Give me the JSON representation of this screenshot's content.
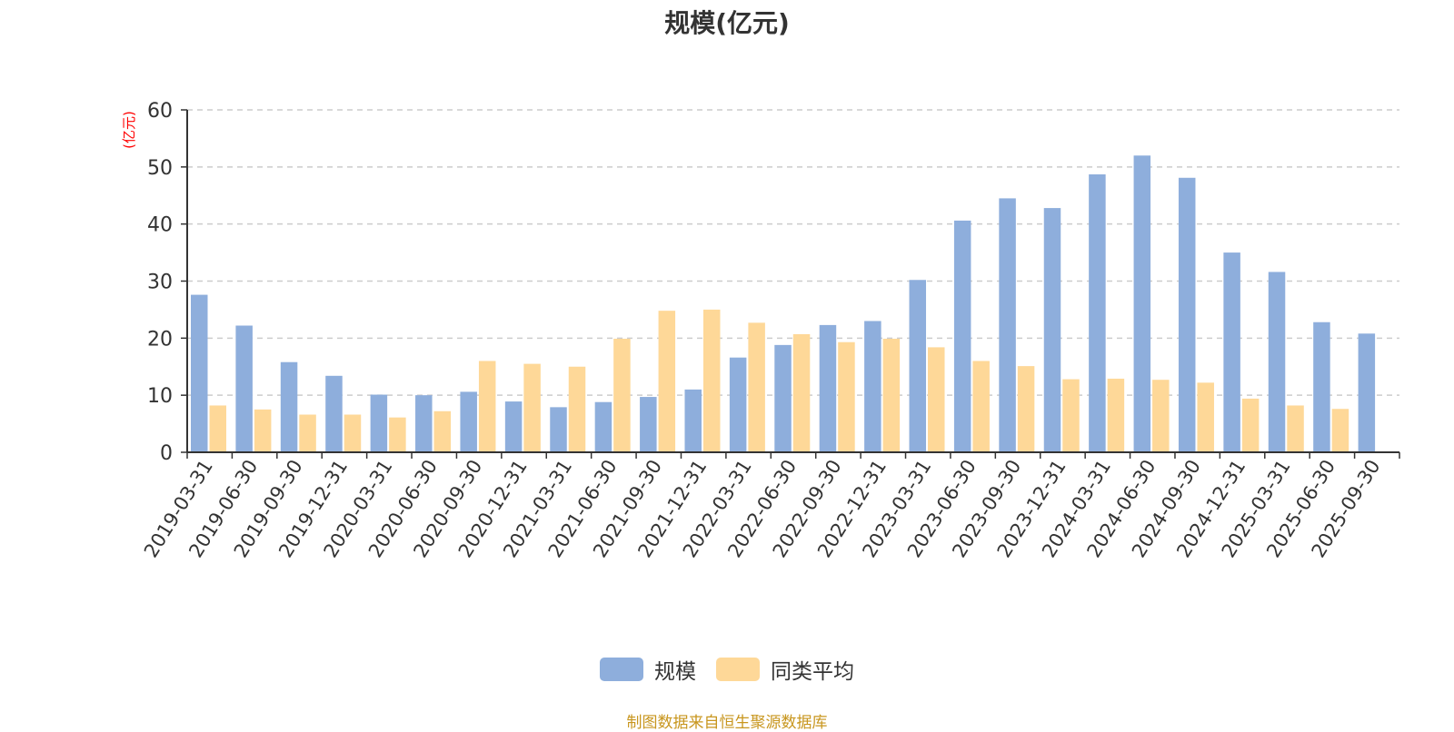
{
  "colors": {
    "series_1": "#8eaedc",
    "series_2": "#fed898",
    "ylabel": "#ff0000",
    "source_note": "#c8961e",
    "grid": "#cccccc",
    "axis": "#333333"
  },
  "source_note": "制图数据来自恒生聚源数据库",
  "chart_data": {
    "type": "bar",
    "title": "规模(亿元)",
    "ylabel": "(亿元)",
    "xlabel": "",
    "ylim": [
      0,
      60
    ],
    "yticks": [
      0,
      10,
      20,
      30,
      40,
      50,
      60
    ],
    "grid": true,
    "legend_position": "bottom",
    "categories": [
      "2019-03-31",
      "2019-06-30",
      "2019-09-30",
      "2019-12-31",
      "2020-03-31",
      "2020-06-30",
      "2020-09-30",
      "2020-12-31",
      "2021-03-31",
      "2021-06-30",
      "2021-09-30",
      "2021-12-31",
      "2022-03-31",
      "2022-06-30",
      "2022-09-30",
      "2022-12-31",
      "2023-03-31",
      "2023-06-30",
      "2023-09-30",
      "2023-12-31",
      "2024-03-31",
      "2024-06-30",
      "2024-09-30",
      "2024-12-31",
      "2025-03-31",
      "2025-06-30",
      "2025-09-30"
    ],
    "series": [
      {
        "name": "规模",
        "values": [
          27.6,
          22.2,
          15.8,
          13.4,
          10.1,
          10.0,
          10.6,
          8.9,
          7.9,
          8.8,
          9.7,
          11.0,
          16.6,
          18.8,
          22.3,
          23.0,
          30.2,
          40.6,
          44.5,
          42.8,
          48.7,
          52.0,
          48.1,
          35.0,
          31.6,
          22.8,
          20.8
        ]
      },
      {
        "name": "同类平均",
        "values": [
          8.2,
          7.5,
          6.6,
          6.6,
          6.1,
          7.2,
          16.0,
          15.5,
          15.0,
          19.9,
          24.8,
          25.0,
          22.7,
          20.7,
          19.3,
          19.9,
          18.4,
          16.0,
          15.1,
          12.8,
          12.9,
          12.7,
          12.2,
          9.4,
          8.2,
          7.6,
          null
        ]
      }
    ]
  }
}
